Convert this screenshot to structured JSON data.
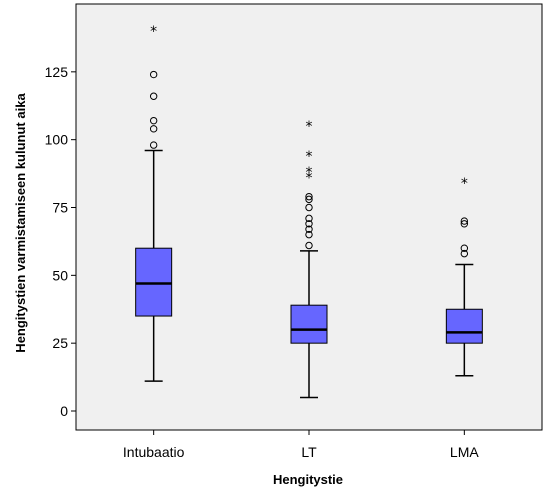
{
  "chart_data": {
    "type": "boxplot",
    "xlabel": "Hengitystie",
    "ylabel": "Hengitystien varmistamiseen kulunut aika",
    "ylim": [
      -7,
      150
    ],
    "yticks": [
      0,
      25,
      50,
      75,
      100,
      125
    ],
    "grid": false,
    "colors": {
      "plot_background": "#f0f0f0",
      "box_fill": "#6666ff",
      "line": "#000000"
    },
    "categories": [
      "Intubaatio",
      "LT",
      "LMA"
    ],
    "boxes": [
      {
        "category": "Intubaatio",
        "whisker_low": 11,
        "q1": 35,
        "median": 47,
        "q3": 60,
        "whisker_high": 96,
        "outliers": [
          98,
          104,
          107,
          116,
          124
        ],
        "extremes": [
          140
        ]
      },
      {
        "category": "LT",
        "whisker_low": 5,
        "q1": 25,
        "median": 30,
        "q3": 39,
        "whisker_high": 59,
        "outliers": [
          61,
          65,
          67,
          69,
          71,
          75,
          78,
          79
        ],
        "extremes": [
          86,
          88,
          94,
          105
        ]
      },
      {
        "category": "LMA",
        "whisker_low": 13,
        "q1": 25,
        "median": 29,
        "q3": 37.5,
        "whisker_high": 54,
        "outliers": [
          58,
          60,
          69,
          70
        ],
        "extremes": [
          84
        ]
      }
    ]
  }
}
